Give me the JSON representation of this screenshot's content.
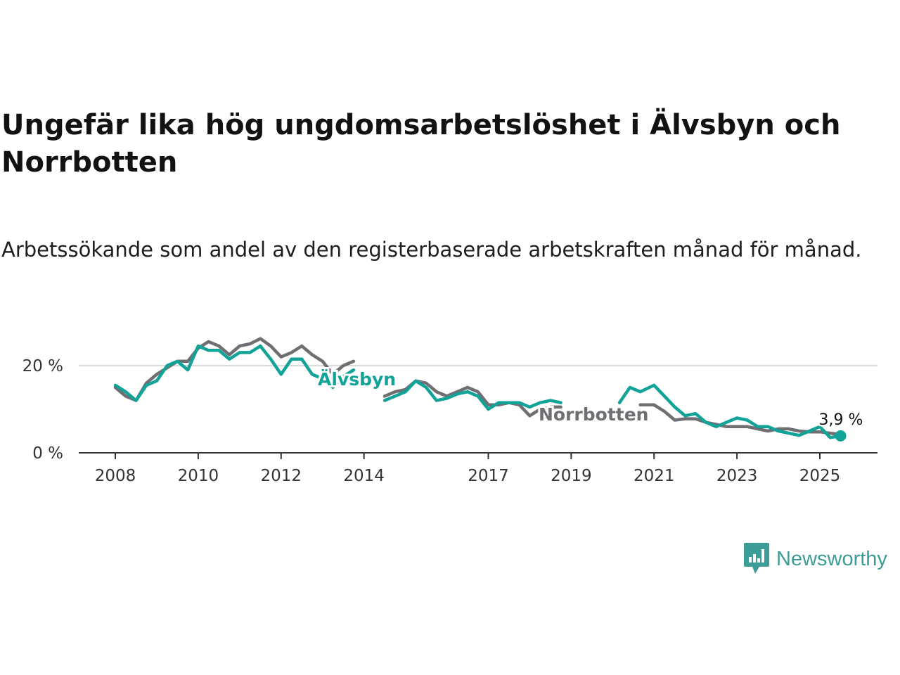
{
  "title": "Ungefär lika hög ungdomsarbetslöshet i Älvsbyn och Norrbotten",
  "subtitle": "Arbetssökande som andel av den registerbaserade arbetskraften månad för månad.",
  "brand": {
    "name": "Newsworthy",
    "color": "#3d9c96"
  },
  "chart_data": {
    "type": "line",
    "x_type": "date",
    "ylim": [
      0,
      30
    ],
    "y_ticks": [
      {
        "value": 0,
        "label": "0 %"
      },
      {
        "value": 20,
        "label": "20 %"
      }
    ],
    "x_ticks": [
      {
        "value": "2008-01",
        "label": "2008"
      },
      {
        "value": "2010-01",
        "label": "2010"
      },
      {
        "value": "2012-01",
        "label": "2012"
      },
      {
        "value": "2014-01",
        "label": "2014"
      },
      {
        "value": "2017-01",
        "label": "2017"
      },
      {
        "value": "2019-01",
        "label": "2019"
      },
      {
        "value": "2021-01",
        "label": "2021"
      },
      {
        "value": "2023-01",
        "label": "2023"
      },
      {
        "value": "2025-01",
        "label": "2025"
      }
    ],
    "grid": "horizontal",
    "series": [
      {
        "name": "Norrbotten",
        "color": "#6f6f73",
        "points": [
          [
            "2008-01",
            15.0
          ],
          [
            "2008-04",
            13.0
          ],
          [
            "2008-07",
            12.0
          ],
          [
            "2008-10",
            16.0
          ],
          [
            "2009-01",
            18.0
          ],
          [
            "2009-04",
            19.5
          ],
          [
            "2009-07",
            21.0
          ],
          [
            "2009-10",
            21.0
          ],
          [
            "2010-01",
            24.0
          ],
          [
            "2010-04",
            25.5
          ],
          [
            "2010-07",
            24.5
          ],
          [
            "2010-10",
            22.5
          ],
          [
            "2011-01",
            24.5
          ],
          [
            "2011-04",
            25.0
          ],
          [
            "2011-07",
            26.2
          ],
          [
            "2011-10",
            24.5
          ],
          [
            "2012-01",
            22.0
          ],
          [
            "2012-04",
            23.0
          ],
          [
            "2012-07",
            24.5
          ],
          [
            "2012-10",
            22.5
          ],
          [
            "2013-01",
            21.0
          ],
          [
            "2013-04",
            18.0
          ],
          [
            "2013-07",
            20.0
          ],
          [
            "2013-10",
            21.0
          ],
          [
            "2014-07",
            13.0
          ],
          [
            "2014-10",
            14.0
          ],
          [
            "2015-01",
            14.5
          ],
          [
            "2015-04",
            16.5
          ],
          [
            "2015-07",
            16.0
          ],
          [
            "2015-10",
            14.0
          ],
          [
            "2016-01",
            13.0
          ],
          [
            "2016-04",
            14.0
          ],
          [
            "2016-07",
            15.0
          ],
          [
            "2016-10",
            14.0
          ],
          [
            "2017-01",
            11.0
          ],
          [
            "2017-04",
            11.0
          ],
          [
            "2017-07",
            11.5
          ],
          [
            "2017-10",
            11.0
          ],
          [
            "2018-01",
            8.5
          ],
          [
            "2018-04",
            10.0
          ],
          [
            "2018-07",
            10.5
          ],
          [
            "2018-10",
            10.5
          ],
          [
            "2020-09",
            11.0
          ],
          [
            "2021-01",
            11.0
          ],
          [
            "2021-04",
            9.5
          ],
          [
            "2021-07",
            7.5
          ],
          [
            "2021-10",
            7.8
          ],
          [
            "2022-01",
            7.8
          ],
          [
            "2022-04",
            7.0
          ],
          [
            "2022-07",
            6.5
          ],
          [
            "2022-10",
            6.0
          ],
          [
            "2023-01",
            6.0
          ],
          [
            "2023-04",
            6.0
          ],
          [
            "2023-07",
            5.5
          ],
          [
            "2023-10",
            5.0
          ],
          [
            "2024-01",
            5.5
          ],
          [
            "2024-04",
            5.5
          ],
          [
            "2024-07",
            5.0
          ],
          [
            "2024-10",
            4.8
          ],
          [
            "2025-01",
            4.8
          ],
          [
            "2025-04",
            4.5
          ],
          [
            "2025-07",
            4.2
          ]
        ]
      },
      {
        "name": "Älvsbyn",
        "color": "#12a398",
        "points": [
          [
            "2008-01",
            15.5
          ],
          [
            "2008-04",
            14.0
          ],
          [
            "2008-07",
            12.0
          ],
          [
            "2008-10",
            15.5
          ],
          [
            "2009-01",
            16.5
          ],
          [
            "2009-04",
            20.0
          ],
          [
            "2009-07",
            21.0
          ],
          [
            "2009-10",
            19.0
          ],
          [
            "2010-01",
            24.5
          ],
          [
            "2010-04",
            23.5
          ],
          [
            "2010-07",
            23.5
          ],
          [
            "2010-10",
            21.5
          ],
          [
            "2011-01",
            23.0
          ],
          [
            "2011-04",
            23.0
          ],
          [
            "2011-07",
            24.5
          ],
          [
            "2011-10",
            21.5
          ],
          [
            "2012-01",
            18.0
          ],
          [
            "2012-04",
            21.5
          ],
          [
            "2012-07",
            21.5
          ],
          [
            "2012-10",
            18.0
          ],
          [
            "2013-01",
            17.0
          ],
          [
            "2013-04",
            15.0
          ],
          [
            "2013-07",
            17.5
          ],
          [
            "2013-10",
            19.0
          ],
          [
            "2014-07",
            12.0
          ],
          [
            "2014-10",
            13.0
          ],
          [
            "2015-01",
            14.0
          ],
          [
            "2015-04",
            16.5
          ],
          [
            "2015-07",
            15.0
          ],
          [
            "2015-10",
            12.0
          ],
          [
            "2016-01",
            12.5
          ],
          [
            "2016-04",
            13.5
          ],
          [
            "2016-07",
            14.0
          ],
          [
            "2016-10",
            13.0
          ],
          [
            "2017-01",
            10.0
          ],
          [
            "2017-04",
            11.5
          ],
          [
            "2017-07",
            11.5
          ],
          [
            "2017-10",
            11.5
          ],
          [
            "2018-01",
            10.5
          ],
          [
            "2018-04",
            11.5
          ],
          [
            "2018-07",
            12.0
          ],
          [
            "2018-10",
            11.5
          ],
          [
            "2020-03",
            11.5
          ],
          [
            "2020-06",
            15.0
          ],
          [
            "2020-09",
            14.0
          ],
          [
            "2021-01",
            15.5
          ],
          [
            "2021-04",
            13.0
          ],
          [
            "2021-07",
            10.5
          ],
          [
            "2021-10",
            8.5
          ],
          [
            "2022-01",
            9.0
          ],
          [
            "2022-04",
            7.0
          ],
          [
            "2022-07",
            6.0
          ],
          [
            "2022-10",
            7.0
          ],
          [
            "2023-01",
            8.0
          ],
          [
            "2023-04",
            7.5
          ],
          [
            "2023-07",
            6.0
          ],
          [
            "2023-10",
            6.0
          ],
          [
            "2024-01",
            5.0
          ],
          [
            "2024-04",
            4.5
          ],
          [
            "2024-07",
            4.0
          ],
          [
            "2024-10",
            5.0
          ],
          [
            "2025-01",
            6.0
          ],
          [
            "2025-04",
            3.5
          ],
          [
            "2025-07",
            3.9
          ]
        ]
      }
    ],
    "labels": [
      {
        "text": "Älvsbyn",
        "series": "Älvsbyn"
      },
      {
        "text": "Norrbotten",
        "series": "Norrbotten"
      }
    ],
    "end_value_label": {
      "text": "3,9 %",
      "series": "Älvsbyn",
      "value": 3.9
    }
  }
}
